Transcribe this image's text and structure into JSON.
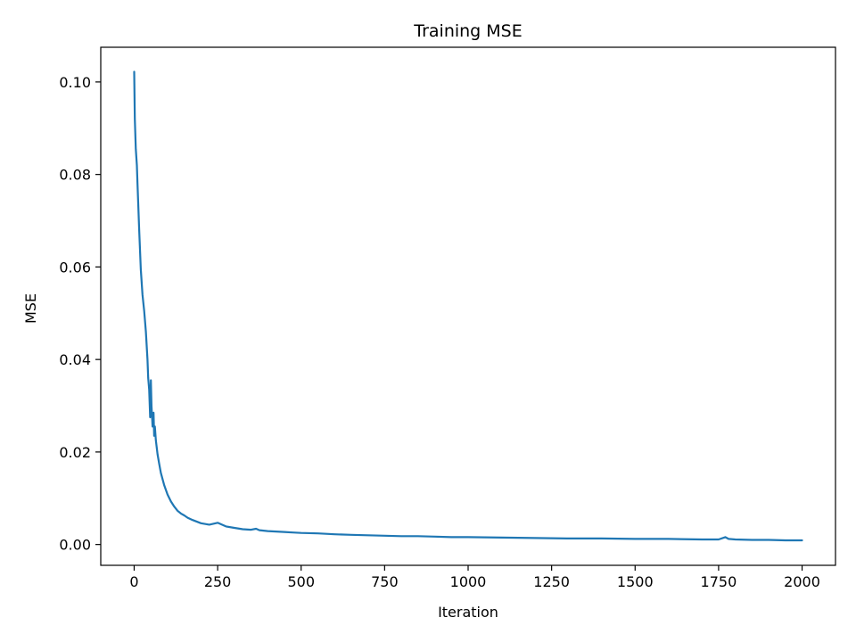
{
  "chart_data": {
    "type": "line",
    "title": "Training MSE",
    "xlabel": "Iteration",
    "ylabel": "MSE",
    "xlim": [
      -100,
      2100
    ],
    "ylim": [
      -0.0045,
      0.1075
    ],
    "xticks": [
      0,
      250,
      500,
      750,
      1000,
      1250,
      1500,
      1750,
      2000
    ],
    "xtick_labels": [
      "0",
      "250",
      "500",
      "750",
      "1000",
      "1250",
      "1500",
      "1750",
      "2000"
    ],
    "yticks": [
      0.0,
      0.02,
      0.04,
      0.06,
      0.08,
      0.1
    ],
    "ytick_labels": [
      "0.00",
      "0.02",
      "0.04",
      "0.06",
      "0.08",
      "0.10"
    ],
    "grid": false,
    "legend": "none",
    "colors": {
      "line": "#1f77b4",
      "frame": "#000000"
    },
    "series": [
      {
        "x": [
          0,
          2,
          5,
          8,
          10,
          15,
          20,
          25,
          30,
          35,
          40,
          42,
          45,
          48,
          50,
          52,
          55,
          58,
          60,
          62,
          65,
          70,
          75,
          80,
          90,
          100,
          110,
          120,
          130,
          140,
          150,
          160,
          175,
          200,
          225,
          250,
          275,
          300,
          325,
          350,
          365,
          375,
          400,
          425,
          450,
          475,
          500,
          550,
          600,
          650,
          700,
          750,
          800,
          850,
          900,
          950,
          1000,
          1100,
          1200,
          1300,
          1400,
          1500,
          1600,
          1700,
          1750,
          1770,
          1780,
          1800,
          1850,
          1900,
          1950,
          2000
        ],
        "y": [
          0.1022,
          0.092,
          0.0855,
          0.082,
          0.078,
          0.068,
          0.0595,
          0.054,
          0.0505,
          0.046,
          0.04,
          0.036,
          0.0335,
          0.0275,
          0.0355,
          0.03,
          0.0255,
          0.0285,
          0.0235,
          0.0255,
          0.0225,
          0.0195,
          0.0175,
          0.0155,
          0.0128,
          0.0108,
          0.0093,
          0.0082,
          0.0073,
          0.0067,
          0.0063,
          0.0058,
          0.0053,
          0.0046,
          0.0043,
          0.0047,
          0.0039,
          0.0036,
          0.0033,
          0.0032,
          0.0034,
          0.0031,
          0.0029,
          0.0028,
          0.0027,
          0.0026,
          0.0025,
          0.0024,
          0.0022,
          0.0021,
          0.002,
          0.0019,
          0.0018,
          0.0018,
          0.0017,
          0.0016,
          0.0016,
          0.0015,
          0.0014,
          0.0013,
          0.0013,
          0.0012,
          0.0012,
          0.0011,
          0.0011,
          0.0016,
          0.0012,
          0.0011,
          0.001,
          0.001,
          0.0009,
          0.0009
        ]
      }
    ]
  }
}
